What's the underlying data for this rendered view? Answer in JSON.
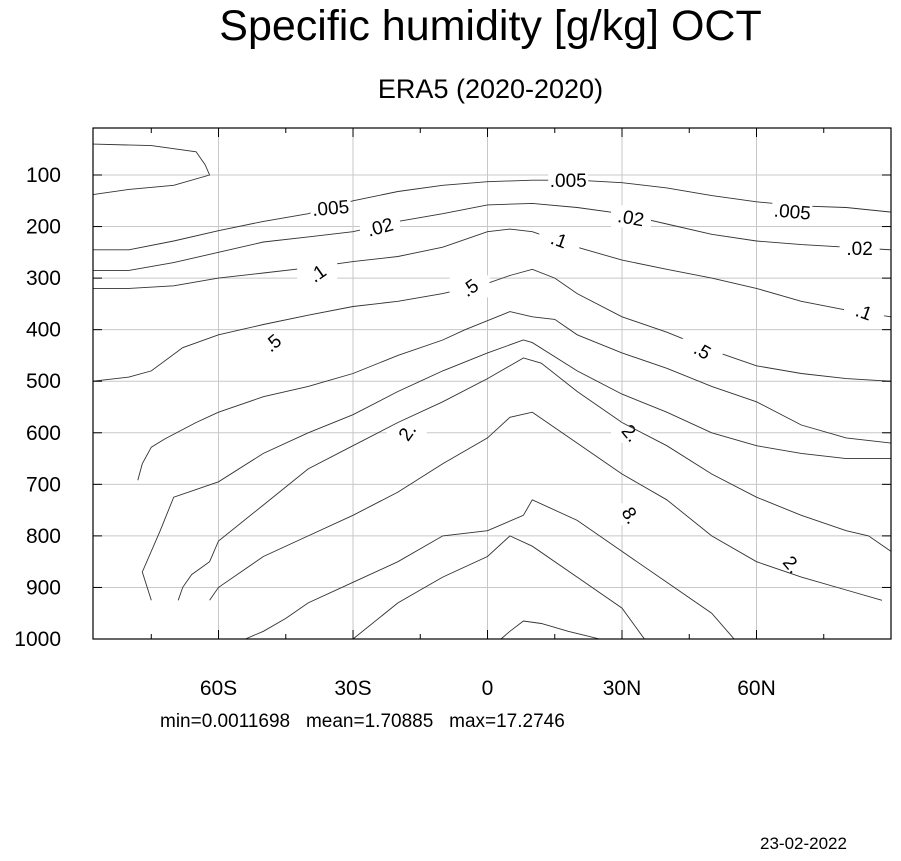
{
  "title": "Specific humidity [g/kg] OCT",
  "subtitle": "ERA5 (2020-2020)",
  "stats": {
    "min": "min=0.0011698",
    "mean": "mean=1.70885",
    "max": "max=17.2746"
  },
  "date": "23-02-2022",
  "chart_data": {
    "type": "contour",
    "title": "Specific humidity [g/kg] OCT",
    "subtitle": "ERA5 (2020-2020)",
    "xlabel": "",
    "ylabel": "",
    "x_axis": "latitude",
    "y_axis": "pressure",
    "xlim": [
      -88,
      90
    ],
    "ylim": [
      1000,
      10
    ],
    "grid": true,
    "x_ticks": [
      {
        "value": -60,
        "label": "60S"
      },
      {
        "value": -30,
        "label": "30S"
      },
      {
        "value": 0,
        "label": "0"
      },
      {
        "value": 30,
        "label": "30N"
      },
      {
        "value": 60,
        "label": "60N"
      }
    ],
    "y_ticks": [
      {
        "value": 100,
        "label": "100"
      },
      {
        "value": 200,
        "label": "200"
      },
      {
        "value": 300,
        "label": "300"
      },
      {
        "value": 400,
        "label": "400"
      },
      {
        "value": 500,
        "label": "500"
      },
      {
        "value": 600,
        "label": "600"
      },
      {
        "value": 700,
        "label": "700"
      },
      {
        "value": 800,
        "label": "800"
      },
      {
        "value": 900,
        "label": "900"
      },
      {
        "value": 1000,
        "label": "1000"
      }
    ],
    "contours": [
      {
        "level": "lowmoist",
        "points": [
          [
            -88,
            40
          ],
          [
            -75,
            43
          ],
          [
            -65,
            55
          ],
          [
            -63,
            80
          ],
          [
            -62,
            100
          ],
          [
            -70,
            120
          ],
          [
            -80,
            128
          ],
          [
            -88,
            138
          ]
        ]
      },
      {
        "level": ".005",
        "points": [
          [
            -88,
            245
          ],
          [
            -80,
            245
          ],
          [
            -70,
            228
          ],
          [
            -60,
            208
          ],
          [
            -50,
            190
          ],
          [
            -40,
            175
          ],
          [
            -30,
            150
          ],
          [
            -20,
            132
          ],
          [
            -10,
            120
          ],
          [
            0,
            113
          ],
          [
            10,
            110
          ],
          [
            20,
            110
          ],
          [
            30,
            115
          ],
          [
            40,
            125
          ],
          [
            50,
            140
          ],
          [
            60,
            152
          ],
          [
            70,
            160
          ],
          [
            80,
            163
          ],
          [
            90,
            172
          ]
        ],
        "labels": [
          {
            "x": -35,
            "y": 163,
            "text": ".005",
            "angle": -5
          },
          {
            "x": 18,
            "y": 110,
            "text": ".005",
            "angle": 0
          },
          {
            "x": 68,
            "y": 170,
            "text": ".005",
            "angle": 5
          }
        ]
      },
      {
        "level": ".02",
        "points": [
          [
            -88,
            285
          ],
          [
            -80,
            285
          ],
          [
            -70,
            270
          ],
          [
            -60,
            250
          ],
          [
            -50,
            230
          ],
          [
            -40,
            220
          ],
          [
            -30,
            210
          ],
          [
            -20,
            190
          ],
          [
            -10,
            175
          ],
          [
            0,
            158
          ],
          [
            10,
            155
          ],
          [
            20,
            163
          ],
          [
            30,
            175
          ],
          [
            40,
            195
          ],
          [
            50,
            215
          ],
          [
            60,
            228
          ],
          [
            70,
            235
          ],
          [
            80,
            240
          ],
          [
            90,
            245
          ]
        ],
        "labels": [
          {
            "x": -24,
            "y": 200,
            "text": ".02",
            "angle": -15
          },
          {
            "x": 32,
            "y": 182,
            "text": ".02",
            "angle": 10
          },
          {
            "x": 83,
            "y": 242,
            "text": ".02",
            "angle": 0
          }
        ]
      },
      {
        "level": ".1",
        "points": [
          [
            -88,
            320
          ],
          [
            -80,
            320
          ],
          [
            -70,
            315
          ],
          [
            -60,
            300
          ],
          [
            -50,
            290
          ],
          [
            -40,
            280
          ],
          [
            -30,
            268
          ],
          [
            -20,
            258
          ],
          [
            -10,
            240
          ],
          [
            0,
            210
          ],
          [
            5,
            205
          ],
          [
            10,
            210
          ],
          [
            20,
            240
          ],
          [
            30,
            265
          ],
          [
            40,
            283
          ],
          [
            50,
            300
          ],
          [
            60,
            320
          ],
          [
            70,
            345
          ],
          [
            80,
            362
          ],
          [
            90,
            375
          ]
        ],
        "labels": [
          {
            "x": -38,
            "y": 290,
            "text": ".1",
            "angle": -35
          },
          {
            "x": 16,
            "y": 225,
            "text": ".1",
            "angle": 20
          },
          {
            "x": 84,
            "y": 365,
            "text": ".1",
            "angle": 20
          }
        ]
      },
      {
        "level": ".5",
        "points": [
          [
            -88,
            500
          ],
          [
            -80,
            492
          ],
          [
            -75,
            480
          ],
          [
            -68,
            435
          ],
          [
            -60,
            410
          ],
          [
            -50,
            390
          ],
          [
            -40,
            372
          ],
          [
            -30,
            355
          ],
          [
            -20,
            345
          ],
          [
            -10,
            330
          ],
          [
            0,
            310
          ],
          [
            5,
            295
          ],
          [
            10,
            283
          ],
          [
            15,
            300
          ],
          [
            20,
            330
          ],
          [
            30,
            375
          ],
          [
            40,
            405
          ],
          [
            50,
            440
          ],
          [
            60,
            470
          ],
          [
            70,
            485
          ],
          [
            80,
            495
          ],
          [
            90,
            500
          ]
        ],
        "labels": [
          {
            "x": -48,
            "y": 425,
            "text": ".5",
            "angle": -40
          },
          {
            "x": -4,
            "y": 318,
            "text": ".5",
            "angle": -35
          },
          {
            "x": 48,
            "y": 440,
            "text": ".5",
            "angle": 30
          }
        ]
      },
      {
        "level": "2.",
        "points": [
          [
            -78,
            692
          ],
          [
            -77,
            660
          ],
          [
            -75,
            628
          ],
          [
            -72,
            612
          ],
          [
            -65,
            580
          ],
          [
            -60,
            560
          ],
          [
            -50,
            530
          ],
          [
            -40,
            510
          ],
          [
            -30,
            485
          ],
          [
            -20,
            450
          ],
          [
            -10,
            420
          ],
          [
            -5,
            400
          ],
          [
            5,
            365
          ],
          [
            10,
            375
          ],
          [
            15,
            380
          ],
          [
            20,
            410
          ],
          [
            30,
            445
          ],
          [
            40,
            475
          ],
          [
            50,
            510
          ],
          [
            60,
            540
          ],
          [
            70,
            585
          ],
          [
            80,
            610
          ],
          [
            90,
            620
          ]
        ],
        "labels": [
          {
            "x": -18,
            "y": 598,
            "text": "2.",
            "angle": -55
          },
          {
            "x": 32,
            "y": 600,
            "text": "2.",
            "angle": 50
          },
          {
            "x": 68,
            "y": 855,
            "text": "2.",
            "angle": 50
          }
        ]
      },
      {
        "level": "8.",
        "points": [
          [
            -75,
            925
          ],
          [
            -77,
            870
          ],
          [
            -73,
            790
          ],
          [
            -70,
            725
          ],
          [
            -60,
            695
          ],
          [
            -50,
            640
          ],
          [
            -40,
            600
          ],
          [
            -30,
            565
          ],
          [
            -20,
            520
          ],
          [
            -10,
            480
          ],
          [
            0,
            445
          ],
          [
            8,
            420
          ],
          [
            10,
            425
          ],
          [
            20,
            480
          ],
          [
            30,
            525
          ],
          [
            40,
            560
          ],
          [
            50,
            600
          ],
          [
            60,
            625
          ],
          [
            70,
            640
          ],
          [
            80,
            650
          ],
          [
            90,
            650
          ]
        ],
        "labels": []
      },
      {
        "level": "inner1",
        "points": [
          [
            -69,
            925
          ],
          [
            -68,
            900
          ],
          [
            -66,
            875
          ],
          [
            -62,
            850
          ],
          [
            -60,
            810
          ],
          [
            -50,
            740
          ],
          [
            -40,
            670
          ],
          [
            -30,
            625
          ],
          [
            -20,
            580
          ],
          [
            -10,
            540
          ],
          [
            0,
            495
          ],
          [
            8,
            455
          ],
          [
            12,
            465
          ],
          [
            20,
            520
          ],
          [
            30,
            580
          ],
          [
            40,
            625
          ],
          [
            50,
            680
          ],
          [
            60,
            725
          ],
          [
            70,
            760
          ],
          [
            80,
            790
          ],
          [
            85,
            800
          ],
          [
            90,
            830
          ]
        ],
        "labels": []
      },
      {
        "level": "inner2",
        "points": [
          [
            -62,
            925
          ],
          [
            -60,
            900
          ],
          [
            -55,
            870
          ],
          [
            -50,
            840
          ],
          [
            -40,
            800
          ],
          [
            -30,
            760
          ],
          [
            -20,
            715
          ],
          [
            -10,
            660
          ],
          [
            0,
            610
          ],
          [
            5,
            570
          ],
          [
            10,
            560
          ],
          [
            20,
            620
          ],
          [
            30,
            680
          ],
          [
            40,
            730
          ],
          [
            50,
            800
          ],
          [
            60,
            850
          ],
          [
            70,
            880
          ],
          [
            80,
            905
          ],
          [
            88,
            925
          ]
        ],
        "labels": [
          {
            "x": 32,
            "y": 760,
            "text": "8.",
            "angle": 60
          }
        ]
      },
      {
        "level": "inner3",
        "points": [
          [
            -54,
            1000
          ],
          [
            -50,
            985
          ],
          [
            -45,
            960
          ],
          [
            -40,
            930
          ],
          [
            -30,
            890
          ],
          [
            -20,
            850
          ],
          [
            -10,
            800
          ],
          [
            0,
            790
          ],
          [
            8,
            760
          ],
          [
            10,
            730
          ],
          [
            20,
            770
          ],
          [
            30,
            830
          ],
          [
            40,
            890
          ],
          [
            50,
            950
          ],
          [
            55,
            1000
          ]
        ],
        "labels": []
      },
      {
        "level": "inner4",
        "points": [
          [
            -30,
            1000
          ],
          [
            -20,
            930
          ],
          [
            -10,
            880
          ],
          [
            0,
            840
          ],
          [
            5,
            800
          ],
          [
            10,
            820
          ],
          [
            20,
            880
          ],
          [
            30,
            940
          ],
          [
            35,
            1000
          ]
        ],
        "labels": []
      },
      {
        "level": "inner5",
        "points": [
          [
            3,
            1000
          ],
          [
            5,
            985
          ],
          [
            8,
            965
          ],
          [
            12,
            970
          ],
          [
            18,
            985
          ],
          [
            25,
            1000
          ]
        ],
        "labels": []
      }
    ]
  }
}
